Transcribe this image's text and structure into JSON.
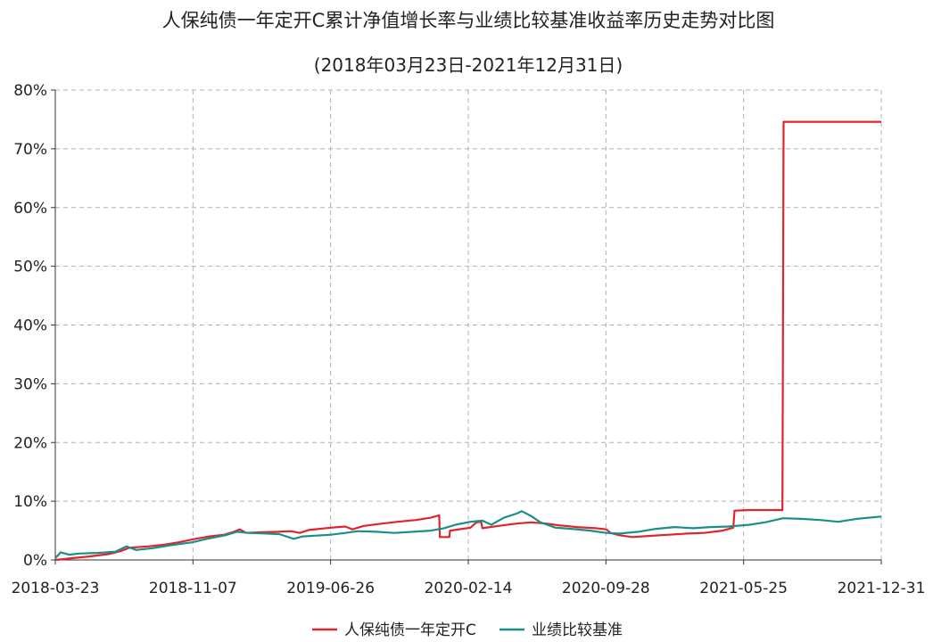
{
  "chart_data": {
    "type": "line",
    "title": "人保纯债一年定开C累计净值增长率与业绩比较基准收益率历史走势对比图",
    "subtitle": "(2018年03月23日-2021年12月31日)",
    "xlabel": "",
    "ylabel": "",
    "ylim": [
      0,
      80
    ],
    "ytick_values": [
      0,
      10,
      20,
      30,
      40,
      50,
      60,
      70,
      80
    ],
    "ytick_labels": [
      "0%",
      "10%",
      "20%",
      "30%",
      "40%",
      "50%",
      "60%",
      "70%",
      "80%"
    ],
    "xlim": [
      "2018-03-23",
      "2021-12-31"
    ],
    "xtick_labels": [
      "2018-03-23",
      "2018-11-07",
      "2019-06-26",
      "2020-02-14",
      "2020-09-28",
      "2021-05-25",
      "2021-12-31"
    ],
    "grid": true,
    "legend_position": "bottom-center",
    "series": [
      {
        "name": "人保纯债一年定开C",
        "color": "#e0242b",
        "points": [
          [
            "2018-03-23",
            0.0
          ],
          [
            "2018-04-20",
            0.3
          ],
          [
            "2018-05-20",
            0.6
          ],
          [
            "2018-06-20",
            1.0
          ],
          [
            "2018-07-10",
            1.5
          ],
          [
            "2018-07-25",
            2.1
          ],
          [
            "2018-08-25",
            2.3
          ],
          [
            "2018-09-20",
            2.6
          ],
          [
            "2018-10-15",
            3.0
          ],
          [
            "2018-11-07",
            3.5
          ],
          [
            "2018-12-05",
            4.0
          ],
          [
            "2018-12-30",
            4.3
          ],
          [
            "2019-01-15",
            4.8
          ],
          [
            "2019-01-25",
            5.2
          ],
          [
            "2019-02-05",
            4.6
          ],
          [
            "2019-02-25",
            4.7
          ],
          [
            "2019-03-30",
            4.8
          ],
          [
            "2019-04-20",
            4.9
          ],
          [
            "2019-05-05",
            4.6
          ],
          [
            "2019-05-20",
            5.1
          ],
          [
            "2019-06-26",
            5.5
          ],
          [
            "2019-07-20",
            5.7
          ],
          [
            "2019-08-01",
            5.2
          ],
          [
            "2019-08-20",
            5.8
          ],
          [
            "2019-09-20",
            6.2
          ],
          [
            "2019-10-15",
            6.5
          ],
          [
            "2019-11-15",
            6.8
          ],
          [
            "2019-12-10",
            7.2
          ],
          [
            "2019-12-24",
            7.6
          ],
          [
            "2019-12-25",
            3.9
          ],
          [
            "2020-01-10",
            3.9
          ],
          [
            "2020-01-11",
            5.0
          ],
          [
            "2020-02-14",
            5.5
          ],
          [
            "2020-02-24",
            6.4
          ],
          [
            "2020-03-03",
            6.5
          ],
          [
            "2020-03-05",
            5.4
          ],
          [
            "2020-04-01",
            5.8
          ],
          [
            "2020-05-01",
            6.2
          ],
          [
            "2020-05-25",
            6.4
          ],
          [
            "2020-06-20",
            6.2
          ],
          [
            "2020-07-10",
            5.9
          ],
          [
            "2020-08-10",
            5.6
          ],
          [
            "2020-09-10",
            5.4
          ],
          [
            "2020-09-28",
            5.2
          ],
          [
            "2020-10-05",
            4.6
          ],
          [
            "2020-10-20",
            4.2
          ],
          [
            "2020-11-10",
            3.9
          ],
          [
            "2020-12-10",
            4.1
          ],
          [
            "2021-01-10",
            4.3
          ],
          [
            "2021-02-10",
            4.5
          ],
          [
            "2021-03-10",
            4.6
          ],
          [
            "2021-04-10",
            5.0
          ],
          [
            "2021-04-28",
            5.5
          ],
          [
            "2021-04-30",
            8.4
          ],
          [
            "2021-05-25",
            8.5
          ],
          [
            "2021-07-19",
            8.5
          ],
          [
            "2021-07-21",
            74.6
          ],
          [
            "2021-12-31",
            74.6
          ]
        ]
      },
      {
        "name": "业绩比较基准",
        "color": "#1a8f8a",
        "points": [
          [
            "2018-03-23",
            0.3
          ],
          [
            "2018-04-01",
            1.3
          ],
          [
            "2018-04-15",
            0.9
          ],
          [
            "2018-05-01",
            1.1
          ],
          [
            "2018-06-01",
            1.2
          ],
          [
            "2018-07-01",
            1.4
          ],
          [
            "2018-07-20",
            2.3
          ],
          [
            "2018-08-05",
            1.7
          ],
          [
            "2018-09-01",
            2.0
          ],
          [
            "2018-10-01",
            2.5
          ],
          [
            "2018-11-07",
            3.0
          ],
          [
            "2018-12-01",
            3.6
          ],
          [
            "2019-01-01",
            4.2
          ],
          [
            "2019-01-20",
            4.8
          ],
          [
            "2019-02-10",
            4.6
          ],
          [
            "2019-03-10",
            4.5
          ],
          [
            "2019-04-01",
            4.4
          ],
          [
            "2019-04-25",
            3.6
          ],
          [
            "2019-05-10",
            4.0
          ],
          [
            "2019-06-26",
            4.3
          ],
          [
            "2019-07-20",
            4.6
          ],
          [
            "2019-08-10",
            4.9
          ],
          [
            "2019-09-10",
            4.8
          ],
          [
            "2019-10-10",
            4.6
          ],
          [
            "2019-11-10",
            4.8
          ],
          [
            "2019-12-10",
            5.0
          ],
          [
            "2020-01-01",
            5.4
          ],
          [
            "2020-01-20",
            6.0
          ],
          [
            "2020-02-14",
            6.5
          ],
          [
            "2020-03-05",
            6.7
          ],
          [
            "2020-03-20",
            6.0
          ],
          [
            "2020-04-10",
            7.2
          ],
          [
            "2020-05-01",
            7.9
          ],
          [
            "2020-05-10",
            8.3
          ],
          [
            "2020-05-25",
            7.5
          ],
          [
            "2020-06-10",
            6.4
          ],
          [
            "2020-07-05",
            5.5
          ],
          [
            "2020-08-01",
            5.3
          ],
          [
            "2020-09-01",
            5.0
          ],
          [
            "2020-09-28",
            4.6
          ],
          [
            "2020-10-20",
            4.5
          ],
          [
            "2020-11-20",
            4.8
          ],
          [
            "2020-12-20",
            5.3
          ],
          [
            "2021-01-20",
            5.6
          ],
          [
            "2021-02-20",
            5.4
          ],
          [
            "2021-03-20",
            5.6
          ],
          [
            "2021-04-20",
            5.7
          ],
          [
            "2021-05-25",
            6.0
          ],
          [
            "2021-06-20",
            6.4
          ],
          [
            "2021-07-20",
            7.1
          ],
          [
            "2021-08-20",
            7.0
          ],
          [
            "2021-09-20",
            6.8
          ],
          [
            "2021-10-20",
            6.5
          ],
          [
            "2021-11-20",
            7.0
          ],
          [
            "2021-12-31",
            7.4
          ]
        ]
      }
    ]
  }
}
